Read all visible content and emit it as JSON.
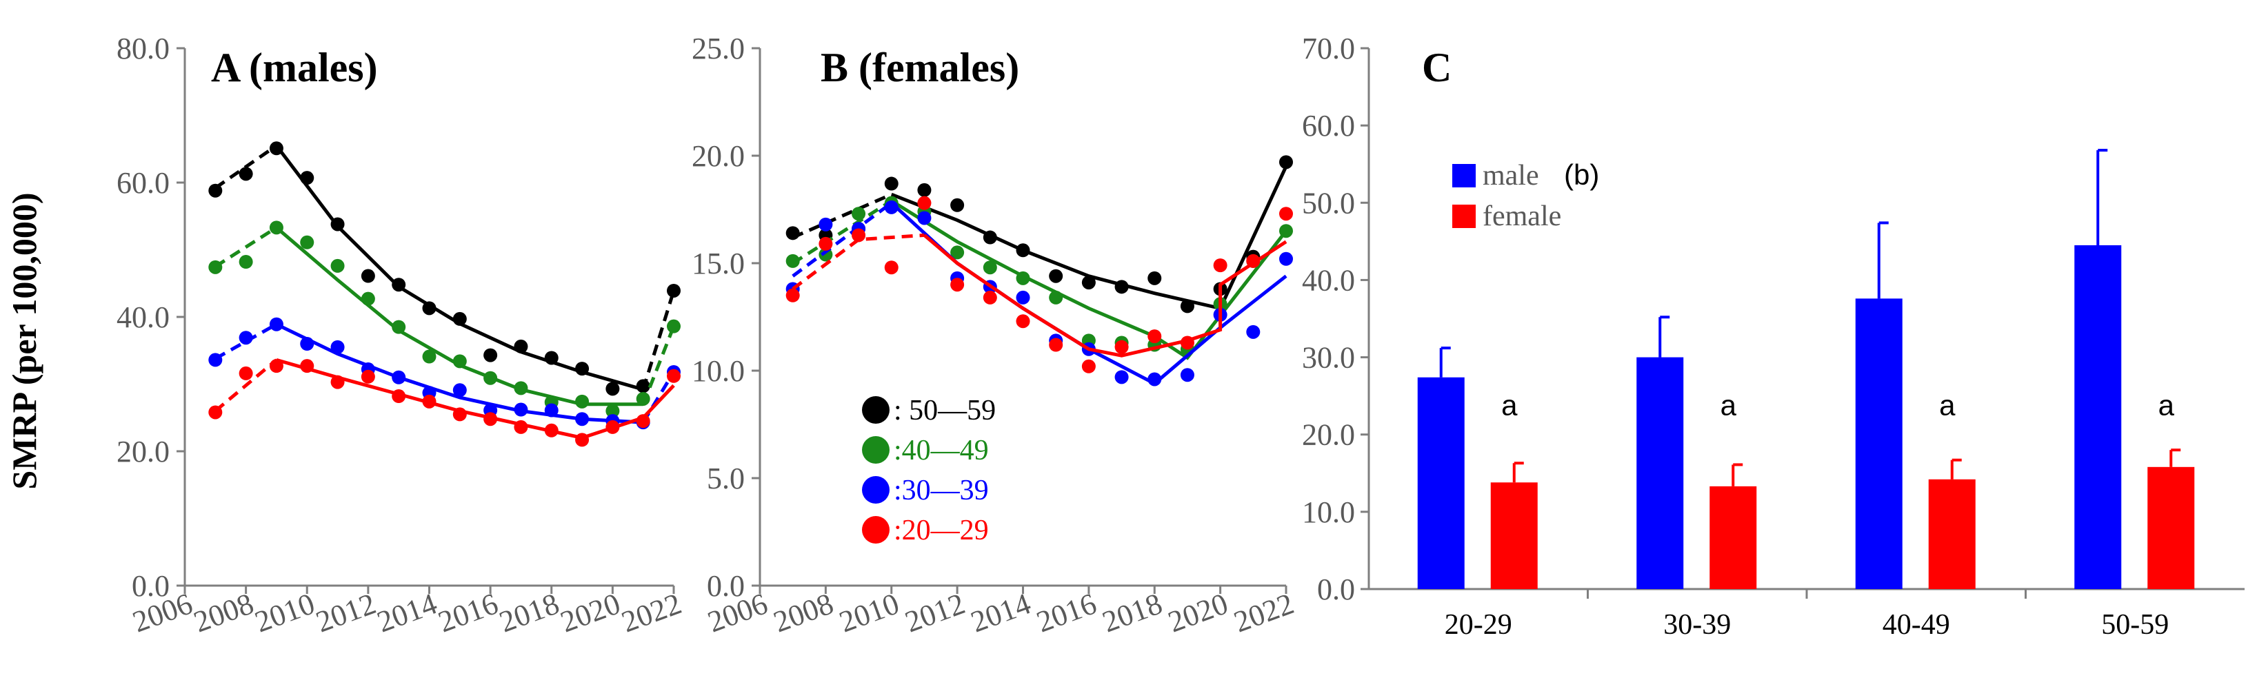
{
  "colors": {
    "black": "#000000",
    "green": "#1a8a1a",
    "blue": "#0000ff",
    "red": "#ff0000",
    "axis": "#7f7f7f"
  },
  "figure": {
    "ylabel": "SMRP (per 100,000)"
  },
  "chart_data": [
    {
      "type": "scatter",
      "title": "A (males)",
      "xlim": [
        2006,
        2022
      ],
      "ylim": [
        0,
        80
      ],
      "xticks": [
        "2006",
        "2008",
        "2010",
        "2012",
        "2014",
        "2016",
        "2018",
        "2020",
        "2022"
      ],
      "yticks": [
        "0.0",
        "20.0",
        "40.0",
        "60.0",
        "80.0"
      ],
      "series": [
        {
          "name": ": 50—59",
          "color": "#000000",
          "x": [
            2007,
            2008,
            2009,
            2010,
            2011,
            2012,
            2013,
            2014,
            2015,
            2016,
            2017,
            2018,
            2019,
            2020,
            2021,
            2022
          ],
          "y": [
            58.8,
            61.3,
            65.1,
            60.7,
            53.8,
            46.1,
            44.8,
            41.3,
            39.7,
            34.3,
            35.6,
            33.9,
            32.3,
            29.3,
            29.7,
            43.9
          ],
          "fit_dashed": [
            [
              2007,
              59.2
            ],
            [
              2009,
              65.5
            ]
          ],
          "fit_solid": [
            [
              2009,
              65.5
            ],
            [
              2011,
              53.5
            ],
            [
              2013,
              44.5
            ],
            [
              2015,
              39.0
            ],
            [
              2017,
              34.8
            ],
            [
              2019,
              31.8
            ],
            [
              2021,
              29.2
            ]
          ],
          "fit_dashed2": [
            [
              2021,
              29.2
            ],
            [
              2022,
              43.9
            ]
          ]
        },
        {
          "name": ":40—49",
          "color": "#1a8a1a",
          "x": [
            2007,
            2008,
            2009,
            2010,
            2011,
            2012,
            2013,
            2014,
            2015,
            2016,
            2017,
            2018,
            2019,
            2020,
            2021,
            2022
          ],
          "y": [
            47.4,
            48.2,
            53.3,
            51.1,
            47.6,
            42.7,
            38.5,
            34.1,
            33.4,
            30.9,
            29.4,
            27.3,
            27.4,
            26.0,
            27.8,
            38.6
          ],
          "fit_dashed": [
            [
              2007,
              47.5
            ],
            [
              2009,
              53.3
            ]
          ],
          "fit_solid": [
            [
              2009,
              53.3
            ],
            [
              2011,
              45.5
            ],
            [
              2013,
              38.0
            ],
            [
              2015,
              32.8
            ],
            [
              2017,
              29.2
            ],
            [
              2019,
              27.0
            ],
            [
              2021,
              27.0
            ]
          ],
          "fit_dashed2": [
            [
              2021,
              27.0
            ],
            [
              2022,
              38.6
            ]
          ]
        },
        {
          "name": ":30—39",
          "color": "#0000ff",
          "x": [
            2007,
            2008,
            2009,
            2010,
            2011,
            2012,
            2013,
            2014,
            2015,
            2016,
            2017,
            2018,
            2019,
            2020,
            2021,
            2022
          ],
          "y": [
            33.6,
            36.9,
            38.9,
            36.0,
            35.5,
            32.2,
            31.0,
            28.7,
            29.1,
            26.1,
            26.2,
            26.1,
            24.8,
            24.5,
            24.3,
            31.8
          ],
          "fit_dashed": [
            [
              2007,
              33.8
            ],
            [
              2009,
              38.9
            ]
          ],
          "fit_solid": [
            [
              2009,
              38.9
            ],
            [
              2011,
              34.5
            ],
            [
              2013,
              31.0
            ],
            [
              2015,
              28.0
            ],
            [
              2017,
              26.0
            ],
            [
              2019,
              24.8
            ],
            [
              2021,
              24.3
            ]
          ],
          "fit_dashed2": [
            [
              2021,
              24.3
            ],
            [
              2022,
              31.8
            ]
          ]
        },
        {
          "name": ":20—29",
          "color": "#ff0000",
          "x": [
            2007,
            2008,
            2009,
            2010,
            2011,
            2012,
            2013,
            2014,
            2015,
            2016,
            2017,
            2018,
            2019,
            2020,
            2021,
            2022
          ],
          "y": [
            25.8,
            31.6,
            32.7,
            32.7,
            30.3,
            31.1,
            28.2,
            27.4,
            25.5,
            24.8,
            23.6,
            23.1,
            21.7,
            23.6,
            24.5,
            31.2
          ],
          "fit_dashed": [
            [
              2007,
              26.0
            ],
            [
              2009,
              33.6
            ]
          ],
          "fit_solid": [
            [
              2009,
              33.6
            ],
            [
              2011,
              31.0
            ],
            [
              2013,
              28.5
            ],
            [
              2015,
              26.0
            ],
            [
              2017,
              24.0
            ],
            [
              2019,
              22.0
            ],
            [
              2021,
              25.0
            ],
            [
              2022,
              29.8
            ]
          ],
          "fit_dashed2": []
        }
      ]
    },
    {
      "type": "scatter",
      "title": "B (females)",
      "xlim": [
        2006,
        2022
      ],
      "ylim": [
        0,
        25
      ],
      "xticks": [
        "2006",
        "2008",
        "2010",
        "2012",
        "2014",
        "2016",
        "2018",
        "2020",
        "2022"
      ],
      "yticks": [
        "0.0",
        "5.0",
        "10.0",
        "15.0",
        "20.0",
        "25.0"
      ],
      "legend": {
        "position": "lower-left",
        "entries": [
          ": 50—59",
          ":40—49",
          ":30—39",
          ":20—29"
        ]
      },
      "series": [
        {
          "name": ": 50—59",
          "color": "#000000",
          "x": [
            2007,
            2008,
            2009,
            2010,
            2011,
            2012,
            2013,
            2014,
            2015,
            2016,
            2017,
            2018,
            2019,
            2020,
            2021,
            2022
          ],
          "y": [
            16.4,
            16.3,
            16.6,
            18.7,
            18.4,
            17.7,
            16.2,
            15.6,
            14.4,
            14.1,
            13.9,
            14.3,
            13.0,
            13.8,
            15.3,
            19.7
          ],
          "fit_dashed": [
            [
              2007,
              16.2
            ],
            [
              2010,
              18.2
            ]
          ],
          "fit_solid": [
            [
              2010,
              18.2
            ],
            [
              2012,
              17.0
            ],
            [
              2014,
              15.6
            ],
            [
              2016,
              14.4
            ],
            [
              2018,
              13.6
            ],
            [
              2020,
              12.9
            ],
            [
              2022,
              19.5
            ]
          ],
          "fit_dashed2": []
        },
        {
          "name": ":40—49",
          "color": "#1a8a1a",
          "x": [
            2007,
            2008,
            2009,
            2010,
            2011,
            2012,
            2013,
            2014,
            2015,
            2016,
            2017,
            2018,
            2019,
            2020,
            2021,
            2022
          ],
          "y": [
            15.1,
            15.4,
            17.3,
            17.8,
            17.4,
            15.5,
            14.8,
            14.3,
            13.4,
            11.4,
            11.3,
            11.2,
            11.0,
            13.1,
            15.1,
            16.5
          ],
          "fit_dashed": [
            [
              2007,
              15.0
            ],
            [
              2010,
              17.9
            ]
          ],
          "fit_solid": [
            [
              2010,
              17.9
            ],
            [
              2012,
              16.0
            ],
            [
              2014,
              14.4
            ],
            [
              2016,
              12.9
            ],
            [
              2018,
              11.6
            ],
            [
              2019,
              10.6
            ],
            [
              2022,
              16.5
            ]
          ],
          "fit_dashed2": []
        },
        {
          "name": ":30—39",
          "color": "#0000ff",
          "x": [
            2007,
            2008,
            2009,
            2010,
            2011,
            2012,
            2013,
            2014,
            2015,
            2016,
            2017,
            2018,
            2019,
            2020,
            2021,
            2022
          ],
          "y": [
            13.8,
            16.8,
            16.6,
            17.6,
            17.1,
            14.3,
            13.9,
            13.4,
            11.4,
            11.0,
            9.7,
            9.6,
            9.8,
            12.6,
            11.8,
            15.2
          ],
          "fit_dashed": [
            [
              2007,
              14.4
            ],
            [
              2010,
              17.8
            ]
          ],
          "fit_solid": [
            [
              2010,
              17.8
            ],
            [
              2012,
              15.0
            ],
            [
              2014,
              12.9
            ],
            [
              2016,
              11.0
            ],
            [
              2018,
              9.4
            ],
            [
              2020,
              12.0
            ],
            [
              2022,
              14.4
            ]
          ],
          "fit_dashed2": []
        },
        {
          "name": ":20—29",
          "color": "#ff0000",
          "x": [
            2007,
            2008,
            2009,
            2010,
            2011,
            2012,
            2013,
            2014,
            2015,
            2016,
            2017,
            2018,
            2019,
            2020,
            2021,
            2022
          ],
          "y": [
            13.5,
            15.9,
            16.3,
            14.8,
            17.8,
            14.0,
            13.4,
            12.3,
            11.2,
            10.2,
            11.1,
            11.6,
            11.3,
            14.9,
            15.1,
            17.3
          ],
          "fit_dashed": [
            [
              2007,
              13.8
            ],
            [
              2009,
              16.1
            ],
            [
              2011,
              16.3
            ]
          ],
          "fit_solid": [
            [
              2011,
              16.3
            ],
            [
              2012,
              15.0
            ],
            [
              2014,
              12.9
            ],
            [
              2016,
              11.0
            ],
            [
              2017,
              10.7
            ],
            [
              2019,
              11.4
            ],
            [
              2020,
              11.9
            ],
            [
              2020,
              14.0
            ],
            [
              2022,
              16.0
            ]
          ],
          "fit_dashed2": []
        }
      ]
    },
    {
      "type": "bar",
      "title": "C",
      "categories": [
        "20-29",
        "30-39",
        "40-49",
        "50-59"
      ],
      "ylim": [
        0,
        70
      ],
      "yticks": [
        "0.0",
        "10.0",
        "20.0",
        "30.0",
        "40.0",
        "50.0",
        "60.0",
        "70.0"
      ],
      "legend": {
        "position": "top-left",
        "entries": [
          "male",
          "(b)",
          "female"
        ]
      },
      "series": [
        {
          "name": "male",
          "color": "#0000ff",
          "values": [
            27.4,
            30.0,
            37.6,
            44.5
          ],
          "errors": [
            3.8,
            5.2,
            9.8,
            12.3
          ]
        },
        {
          "name": "female",
          "color": "#ff0000",
          "values": [
            13.8,
            13.3,
            14.2,
            15.8
          ],
          "errors": [
            2.5,
            2.8,
            2.5,
            2.2
          ]
        }
      ],
      "annotations": [
        "a",
        "a",
        "a",
        "a"
      ]
    }
  ]
}
